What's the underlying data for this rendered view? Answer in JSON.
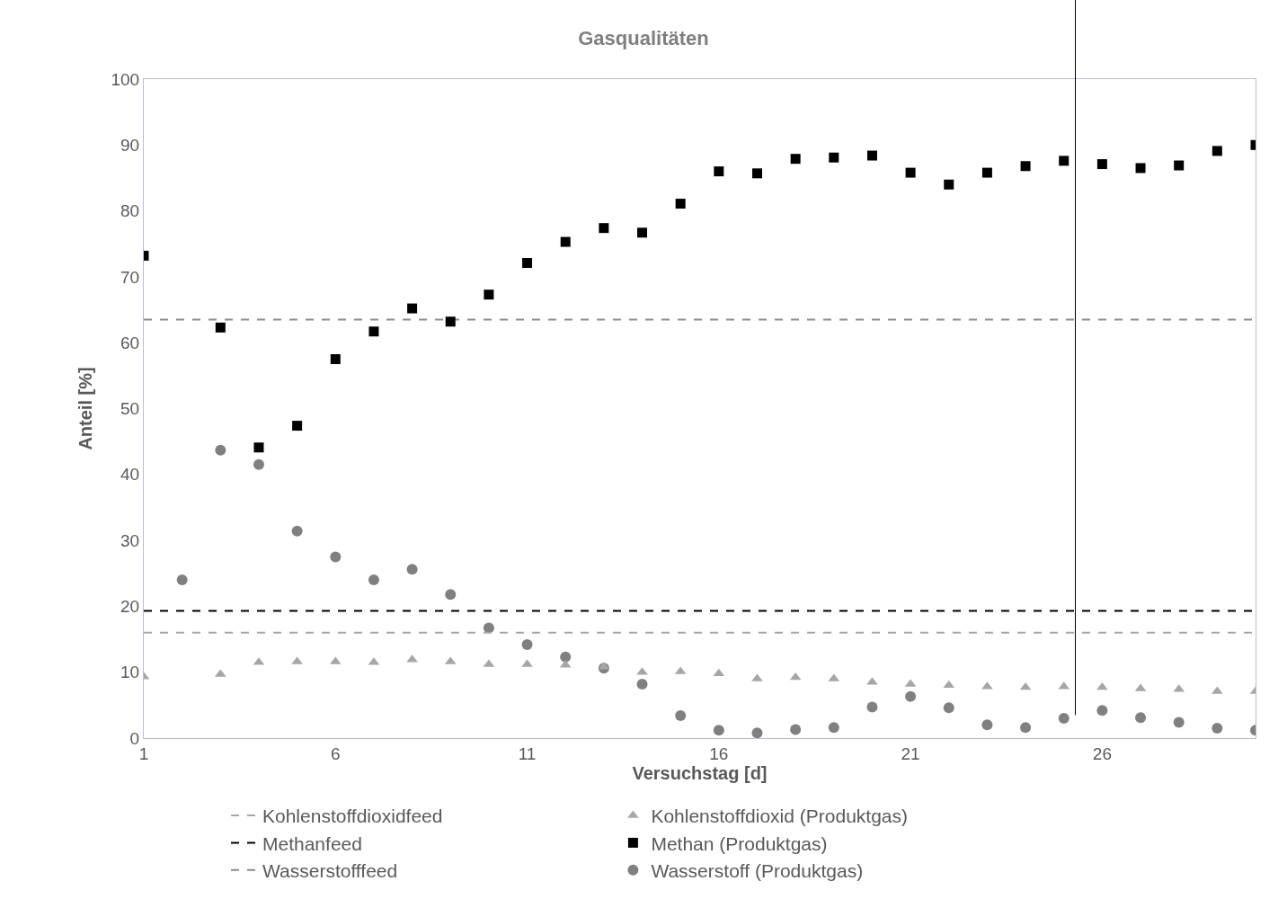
{
  "chart_data": {
    "type": "scatter",
    "title": "Gasqualitäten",
    "xlabel": "Versuchstag [d]",
    "ylabel": "Anteil [%]",
    "x": [
      1,
      2,
      3,
      4,
      5,
      6,
      7,
      8,
      9,
      10,
      11,
      12,
      13,
      14,
      15,
      16,
      17,
      18,
      19,
      20,
      21,
      22,
      23,
      24,
      25,
      26,
      27,
      28,
      29,
      30
    ],
    "xlim": [
      1,
      30
    ],
    "xticks": [
      1,
      6,
      11,
      16,
      21,
      26
    ],
    "ylim": [
      0,
      100
    ],
    "yticks": [
      0,
      10,
      20,
      30,
      40,
      50,
      60,
      70,
      80,
      90,
      100
    ],
    "legend": "bottom",
    "ref_lines": [
      {
        "axis": "y",
        "value": 16.0,
        "label": "Kohlenstoffdioxidfeed",
        "color": "#a6a6a6",
        "line_style": "dashed"
      },
      {
        "axis": "y",
        "value": 19.3,
        "label": "Methanfeed",
        "color": "#000000",
        "line_style": "dashed"
      },
      {
        "axis": "y",
        "value": 63.5,
        "label": "Wasserstofffeed",
        "color": "#8c8c8c",
        "line_style": "dashed"
      },
      {
        "axis": "x",
        "value": 25.3,
        "color": "#000000",
        "line_style": "solid"
      }
    ],
    "series": [
      {
        "name": "Kohlenstoffdioxid (Produktgas)",
        "color": "#a6a6a6",
        "marker": "triangle",
        "values": [
          9.3,
          null,
          9.7,
          11.5,
          11.6,
          11.6,
          11.5,
          11.9,
          11.6,
          11.2,
          11.2,
          11.1,
          10.8,
          10.0,
          10.1,
          9.8,
          9.0,
          9.2,
          9.0,
          8.5,
          8.2,
          8.0,
          7.8,
          7.7,
          7.8,
          7.7,
          7.5,
          7.4,
          7.1,
          7.1
        ]
      },
      {
        "name": "Methan (Produktgas)",
        "color": "#000000",
        "marker": "square",
        "values": [
          73.2,
          null,
          62.3,
          44.1,
          47.4,
          57.5,
          61.7,
          65.2,
          63.2,
          67.3,
          72.1,
          75.3,
          77.4,
          76.7,
          81.1,
          86.0,
          85.7,
          87.9,
          88.1,
          88.4,
          85.8,
          84.0,
          85.8,
          86.8,
          87.6,
          87.1,
          86.5,
          86.9,
          89.1,
          90.0
        ]
      },
      {
        "name": "Wasserstoff (Produktgas)",
        "color": "#808080",
        "marker": "circle",
        "values": [
          null,
          24.0,
          43.7,
          41.5,
          31.4,
          27.5,
          24.0,
          25.6,
          21.8,
          16.7,
          14.2,
          12.3,
          10.6,
          8.2,
          3.4,
          1.2,
          0.8,
          1.3,
          1.6,
          4.7,
          6.3,
          4.6,
          2.0,
          1.6,
          3.0,
          4.2,
          3.1,
          2.4,
          1.5,
          1.2
        ]
      }
    ]
  }
}
